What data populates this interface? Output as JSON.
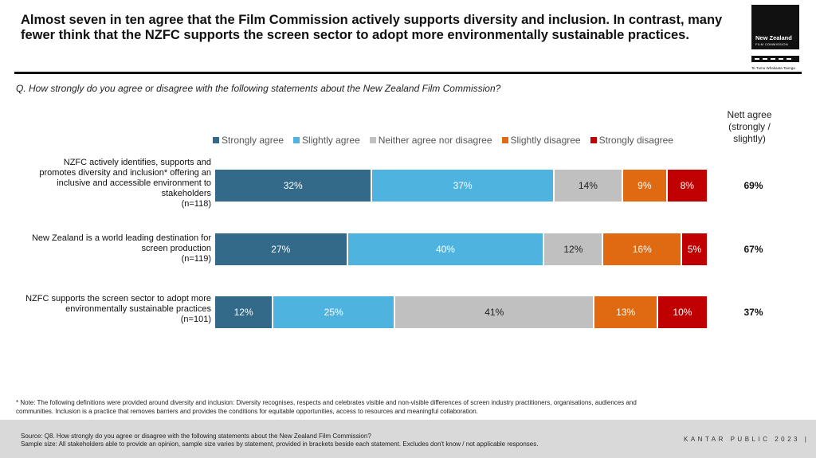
{
  "headline": "Almost seven in ten agree that the Film Commission actively supports diversity and inclusion.  In contrast, many fewer think that the NZFC supports the screen sector to adopt more environmentally sustainable practices.",
  "logo": {
    "line1": "New Zealand",
    "line2": "FILM COMMISSION",
    "tagline": "Te Tumu Whakaata Taonga"
  },
  "question": "Q. How strongly do you agree or disagree with the following statements about the New Zealand Film Commission?",
  "nett_header": "Nett agree (strongly / slightly)",
  "chart_data": {
    "type": "bar",
    "orientation": "horizontal-stacked-100",
    "categories": [
      "NZFC actively identifies, supports and promotes diversity and inclusion* offering an inclusive and accessible environment to stakeholders (n=118)",
      "New Zealand is a world leading destination for screen production (n=119)",
      "NZFC supports the screen sector to adopt more environmentally sustainable practices (n=101)"
    ],
    "category_lines": [
      [
        "NZFC actively identifies, supports and",
        "promotes diversity and inclusion* offering an",
        "inclusive and accessible environment to",
        "stakeholders",
        "(n=118)"
      ],
      [
        "New Zealand is a world leading destination for",
        "screen production",
        "(n=119)"
      ],
      [
        "NZFC supports the screen sector to adopt more",
        "environmentally sustainable practices",
        "(n=101)"
      ]
    ],
    "series": [
      {
        "name": "Strongly agree",
        "color": "#336a8a",
        "label_color": "#ffffff",
        "values": [
          32,
          27,
          12
        ]
      },
      {
        "name": "Slightly agree",
        "color": "#4fb3e0",
        "label_color": "#ffffff",
        "values": [
          37,
          40,
          25
        ]
      },
      {
        "name": "Neither agree nor disagree",
        "color": "#c0c0c0",
        "label_color": "#222222",
        "values": [
          14,
          12,
          41
        ]
      },
      {
        "name": "Slightly disagree",
        "color": "#e06a12",
        "label_color": "#ffffff",
        "values": [
          9,
          16,
          13
        ]
      },
      {
        "name": "Strongly disagree",
        "color": "#c00000",
        "label_color": "#ffffff",
        "values": [
          8,
          5,
          10
        ]
      }
    ],
    "nett_agree": [
      "69%",
      "67%",
      "37%"
    ],
    "legend_position": "top",
    "xlim": [
      0,
      100
    ]
  },
  "note": "* Note: The following definitions were provided around diversity and inclusion: Diversity recognises, respects and celebrates visible and non-visible differences of screen industry practitioners, organisations, audiences and communities. Inclusion is a practice that removes barriers and provides the conditions for equitable opportunities, access to resources and meaningful collaboration.",
  "footer": {
    "source_line1": "Source: Q8. How strongly do you agree or disagree with the following statements about the New Zealand Film Commission?",
    "source_line2": "Sample size: All stakeholders able to provide an opinion, sample size varies by statement, provided in brackets beside each statement. Excludes don't know / not applicable responses.",
    "brand": "KANTAR PUBLIC 2023  |"
  }
}
